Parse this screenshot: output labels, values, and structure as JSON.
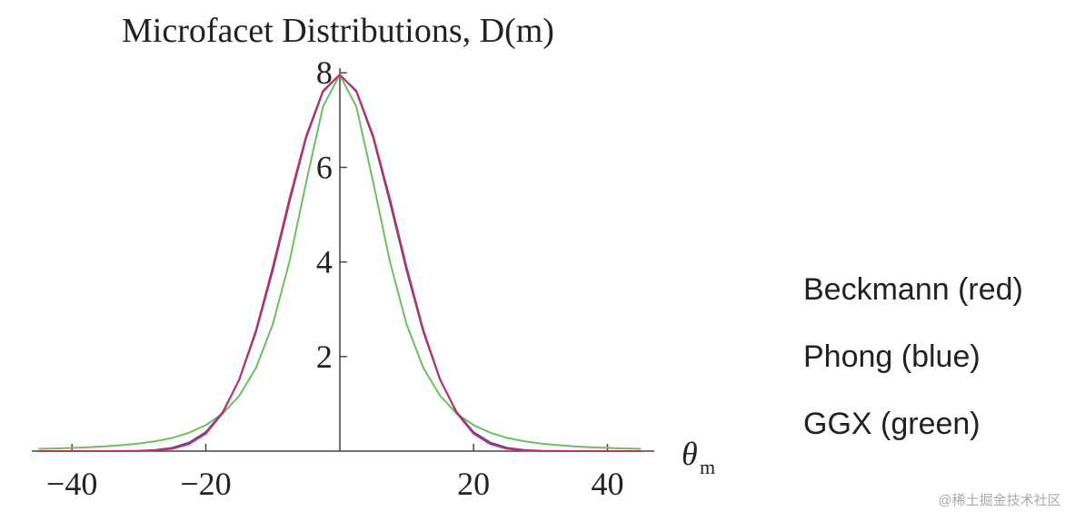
{
  "chart_data": {
    "type": "line",
    "title": "Microfacet Distributions, D(m)",
    "x_label": "θ",
    "x_label_sub": "m",
    "x": [
      -45,
      -42.5,
      -40,
      -37.5,
      -35,
      -32.5,
      -30,
      -27.5,
      -25,
      -22.5,
      -20,
      -17.5,
      -15,
      -12.5,
      -10,
      -7.5,
      -5,
      -2.5,
      0,
      2.5,
      5,
      7.5,
      10,
      12.5,
      15,
      17.5,
      20,
      22.5,
      25,
      27.5,
      30,
      32.5,
      35,
      37.5,
      40,
      42.5,
      45
    ],
    "series": [
      {
        "name": "Beckmann (red)",
        "color": "#c2305c",
        "values": [
          0,
          0,
          0,
          0,
          0,
          0.0005,
          0.003,
          0.015,
          0.05,
          0.15,
          0.37,
          0.8,
          1.52,
          2.56,
          3.89,
          5.34,
          6.67,
          7.62,
          7.96,
          7.62,
          6.67,
          5.34,
          3.89,
          2.56,
          1.52,
          0.8,
          0.37,
          0.15,
          0.05,
          0.015,
          0.003,
          0.0005,
          0,
          0,
          0,
          0,
          0
        ]
      },
      {
        "name": "Phong (blue)",
        "color": "#4a4ab4",
        "values": [
          0,
          0,
          0,
          0,
          0.0006,
          0.002,
          0.008,
          0.025,
          0.07,
          0.18,
          0.4,
          0.82,
          1.51,
          2.52,
          3.82,
          5.27,
          6.63,
          7.6,
          7.96,
          7.6,
          6.63,
          5.27,
          3.82,
          2.52,
          1.51,
          0.82,
          0.4,
          0.18,
          0.07,
          0.025,
          0.008,
          0.002,
          0.0006,
          0,
          0,
          0,
          0
        ]
      },
      {
        "name": "GGX (green)",
        "color": "#6cbf5c",
        "values": [
          0.047,
          0.056,
          0.067,
          0.081,
          0.1,
          0.127,
          0.16,
          0.21,
          0.28,
          0.39,
          0.55,
          0.79,
          1.17,
          1.76,
          2.68,
          4.01,
          5.69,
          7.28,
          7.96,
          7.28,
          5.69,
          4.01,
          2.68,
          1.76,
          1.17,
          0.79,
          0.55,
          0.39,
          0.28,
          0.21,
          0.16,
          0.127,
          0.1,
          0.081,
          0.067,
          0.056,
          0.047
        ]
      }
    ],
    "xlim": [
      -46,
      47
    ],
    "ylim": [
      0,
      8.1
    ],
    "xticks": [
      {
        "value": -40,
        "label": "−40"
      },
      {
        "value": -20,
        "label": "−20"
      },
      20,
      40
    ],
    "yticks": [
      2,
      4,
      6,
      8
    ],
    "watermark": "@稀土掘金技术社区"
  }
}
